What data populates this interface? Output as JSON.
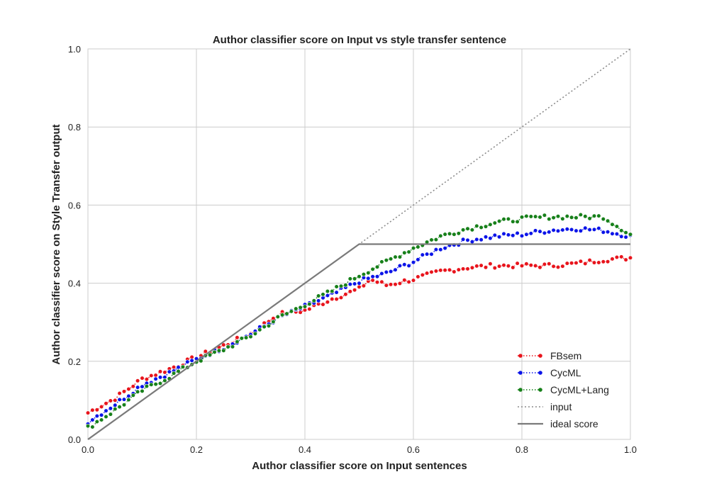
{
  "chart_data": {
    "type": "line",
    "title": "Author classifier score on Input vs style transfer sentence",
    "xlabel": "Author classifier score on Input sentences",
    "ylabel": "Author classifier score on Style Transfer output",
    "xlim": [
      0.0,
      1.0
    ],
    "ylim": [
      0.0,
      1.0
    ],
    "xticks": [
      "0.0",
      "0.2",
      "0.4",
      "0.6",
      "0.8",
      "1.0"
    ],
    "yticks": [
      "0.0",
      "0.2",
      "0.4",
      "0.6",
      "0.8",
      "1.0"
    ],
    "grid": true,
    "legend_position": "bottom-right",
    "series": [
      {
        "name": "FBsem",
        "color": "#e8141c",
        "style": "dotted-markers",
        "anchors": [
          [
            0.0,
            0.068
          ],
          [
            0.05,
            0.105
          ],
          [
            0.1,
            0.155
          ],
          [
            0.15,
            0.18
          ],
          [
            0.2,
            0.21
          ],
          [
            0.25,
            0.24
          ],
          [
            0.3,
            0.27
          ],
          [
            0.35,
            0.32
          ],
          [
            0.4,
            0.33
          ],
          [
            0.45,
            0.36
          ],
          [
            0.5,
            0.385
          ],
          [
            0.52,
            0.41
          ],
          [
            0.55,
            0.395
          ],
          [
            0.6,
            0.41
          ],
          [
            0.65,
            0.43
          ],
          [
            0.7,
            0.44
          ],
          [
            0.75,
            0.445
          ],
          [
            0.8,
            0.445
          ],
          [
            0.85,
            0.445
          ],
          [
            0.9,
            0.45
          ],
          [
            0.95,
            0.46
          ],
          [
            1.0,
            0.465
          ]
        ]
      },
      {
        "name": "CycML",
        "color": "#0b14e8",
        "style": "dotted-markers",
        "anchors": [
          [
            0.0,
            0.045
          ],
          [
            0.05,
            0.09
          ],
          [
            0.1,
            0.14
          ],
          [
            0.15,
            0.17
          ],
          [
            0.2,
            0.205
          ],
          [
            0.25,
            0.235
          ],
          [
            0.3,
            0.27
          ],
          [
            0.35,
            0.31
          ],
          [
            0.4,
            0.34
          ],
          [
            0.45,
            0.37
          ],
          [
            0.5,
            0.405
          ],
          [
            0.55,
            0.425
          ],
          [
            0.6,
            0.455
          ],
          [
            0.65,
            0.49
          ],
          [
            0.7,
            0.51
          ],
          [
            0.75,
            0.52
          ],
          [
            0.8,
            0.525
          ],
          [
            0.85,
            0.535
          ],
          [
            0.9,
            0.54
          ],
          [
            0.95,
            0.535
          ],
          [
            1.0,
            0.52
          ]
        ]
      },
      {
        "name": "CycML+Lang",
        "color": "#17801a",
        "style": "dotted-markers",
        "anchors": [
          [
            0.0,
            0.03
          ],
          [
            0.05,
            0.075
          ],
          [
            0.1,
            0.125
          ],
          [
            0.15,
            0.16
          ],
          [
            0.2,
            0.2
          ],
          [
            0.25,
            0.23
          ],
          [
            0.3,
            0.265
          ],
          [
            0.35,
            0.31
          ],
          [
            0.4,
            0.345
          ],
          [
            0.45,
            0.38
          ],
          [
            0.5,
            0.42
          ],
          [
            0.55,
            0.455
          ],
          [
            0.6,
            0.49
          ],
          [
            0.65,
            0.52
          ],
          [
            0.7,
            0.54
          ],
          [
            0.75,
            0.555
          ],
          [
            0.8,
            0.565
          ],
          [
            0.85,
            0.57
          ],
          [
            0.9,
            0.57
          ],
          [
            0.95,
            0.57
          ],
          [
            1.0,
            0.525
          ]
        ]
      },
      {
        "name": "input",
        "color": "#8c8c8c",
        "style": "dotted",
        "points": [
          [
            0.0,
            0.0
          ],
          [
            1.0,
            1.0
          ]
        ]
      },
      {
        "name": "ideal score",
        "color": "#7a7a7a",
        "style": "solid",
        "points": [
          [
            0.0,
            0.0
          ],
          [
            0.5,
            0.5
          ],
          [
            1.0,
            0.5
          ]
        ]
      }
    ]
  }
}
